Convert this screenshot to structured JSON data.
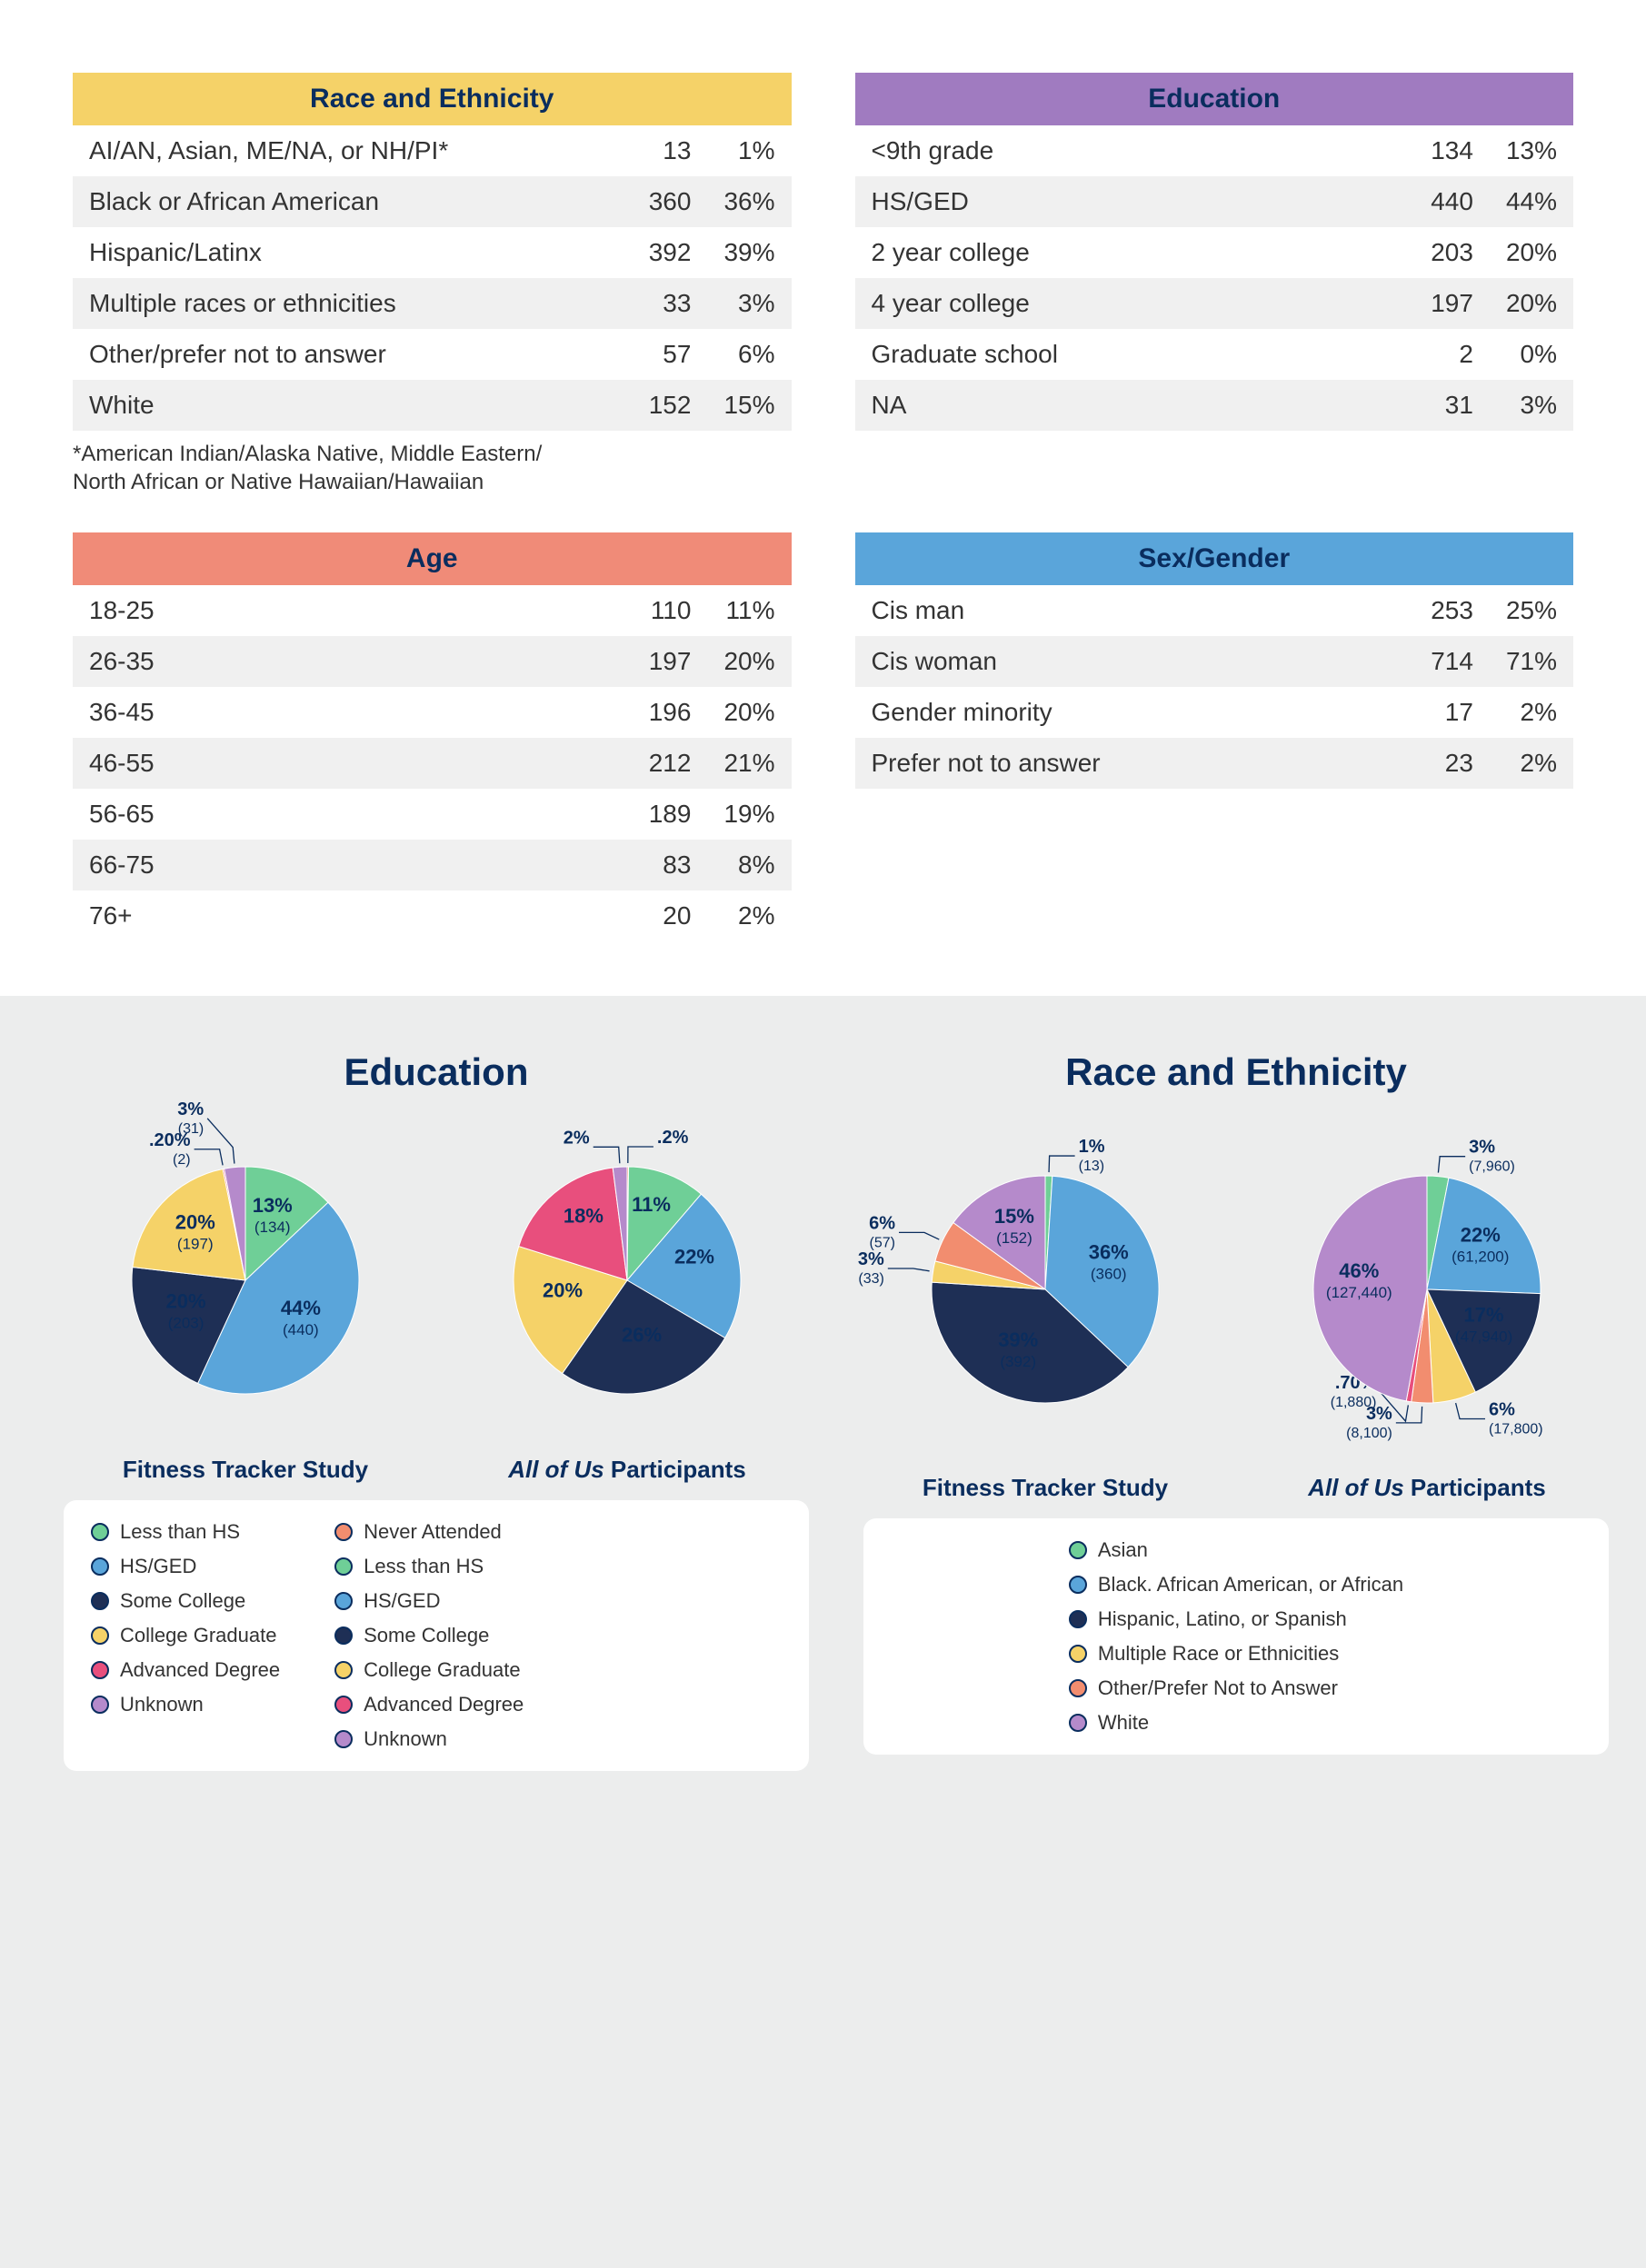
{
  "colors": {
    "header_text": "#0a2d5e",
    "row_even": "#f0f0f0",
    "row_odd": "#ffffff",
    "footnote": "#333333"
  },
  "palette": {
    "green": "#6fcf97",
    "lightblue": "#5aa5da",
    "navy": "#1e2f55",
    "yellow": "#f5d268",
    "pink": "#e84f7d",
    "lilac": "#b58acb",
    "coral": "#f28d6f"
  },
  "tables": {
    "race": {
      "title": "Race and Ethnicity",
      "header_bg": "#f5d268",
      "header_color": "#0a2d5e",
      "rows": [
        {
          "label": "AI/AN, Asian, ME/NA, or NH/PI*",
          "n": "13",
          "pct": "1%"
        },
        {
          "label": "Black or African American",
          "n": "360",
          "pct": "36%"
        },
        {
          "label": "Hispanic/Latinx",
          "n": "392",
          "pct": "39%"
        },
        {
          "label": "Multiple races or ethnicities",
          "n": "33",
          "pct": "3%"
        },
        {
          "label": "Other/prefer not to answer",
          "n": "57",
          "pct": "6%"
        },
        {
          "label": "White",
          "n": "152",
          "pct": "15%"
        }
      ],
      "footnote": "*American Indian/Alaska Native, Middle Eastern/\nNorth African or Native Hawaiian/Hawaiian"
    },
    "education": {
      "title": "Education",
      "header_bg": "#a07bc0",
      "header_color": "#0a2d5e",
      "rows": [
        {
          "label": "<9th grade",
          "n": "134",
          "pct": "13%"
        },
        {
          "label": "HS/GED",
          "n": "440",
          "pct": "44%"
        },
        {
          "label": "2 year college",
          "n": "203",
          "pct": "20%"
        },
        {
          "label": "4 year college",
          "n": "197",
          "pct": "20%"
        },
        {
          "label": "Graduate school",
          "n": "2",
          "pct": "0%"
        },
        {
          "label": "NA",
          "n": "31",
          "pct": "3%"
        }
      ]
    },
    "age": {
      "title": "Age",
      "header_bg": "#f08b78",
      "header_color": "#0a2d5e",
      "rows": [
        {
          "label": "18-25",
          "n": "110",
          "pct": "11%"
        },
        {
          "label": "26-35",
          "n": "197",
          "pct": "20%"
        },
        {
          "label": "36-45",
          "n": "196",
          "pct": "20%"
        },
        {
          "label": "46-55",
          "n": "212",
          "pct": "21%"
        },
        {
          "label": "56-65",
          "n": "189",
          "pct": "19%"
        },
        {
          "label": "66-75",
          "n": "83",
          "pct": "8%"
        },
        {
          "label": "76+",
          "n": "20",
          "pct": "2%"
        }
      ]
    },
    "sex": {
      "title": "Sex/Gender",
      "header_bg": "#5aa5da",
      "header_color": "#0a2d5e",
      "rows": [
        {
          "label": "Cis man",
          "n": "253",
          "pct": "25%"
        },
        {
          "label": "Cis woman",
          "n": "714",
          "pct": "71%"
        },
        {
          "label": "Gender minority",
          "n": "17",
          "pct": "2%"
        },
        {
          "label": "Prefer not to answer",
          "n": "23",
          "pct": "2%"
        }
      ]
    }
  },
  "charts": {
    "education": {
      "title": "Education",
      "subtitle_left": "Fitness Tracker Study",
      "subtitle_right_pre": "All of Us",
      "subtitle_right_post": " Participants",
      "pie_left": {
        "radius": 125,
        "slices": [
          {
            "key": "green",
            "value": 13,
            "label": "13%",
            "sub": "(134)",
            "inside": true
          },
          {
            "key": "lightblue",
            "value": 44,
            "label": "44%",
            "sub": "(440)",
            "inside": true
          },
          {
            "key": "navy",
            "value": 20,
            "label": "20%",
            "sub": "(203)",
            "inside": true,
            "light": true
          },
          {
            "key": "yellow",
            "value": 20,
            "label": "20%",
            "sub": "(197)",
            "inside": true
          },
          {
            "key": "pink",
            "value": 0.2,
            "label": ".20%",
            "sub": "(2)",
            "inside": false
          },
          {
            "key": "lilac",
            "value": 3,
            "label": "3%",
            "sub": "(31)",
            "inside": false
          }
        ]
      },
      "pie_right": {
        "radius": 125,
        "slices": [
          {
            "key": "coral",
            "value": 0.2,
            "label": ".2%",
            "sub": "",
            "inside": false
          },
          {
            "key": "green",
            "value": 11,
            "label": "11%",
            "sub": "",
            "inside": true
          },
          {
            "key": "lightblue",
            "value": 22,
            "label": "22%",
            "sub": "",
            "inside": true
          },
          {
            "key": "navy",
            "value": 26,
            "label": "26%",
            "sub": "",
            "inside": true,
            "light": true
          },
          {
            "key": "yellow",
            "value": 20,
            "label": "20%",
            "sub": "",
            "inside": true
          },
          {
            "key": "pink",
            "value": 18,
            "label": "18%",
            "sub": "",
            "inside": true,
            "light": true
          },
          {
            "key": "lilac",
            "value": 2,
            "label": "2%",
            "sub": "",
            "inside": false
          }
        ]
      },
      "legend_left": [
        {
          "key": "green",
          "label": "Less than HS"
        },
        {
          "key": "lightblue",
          "label": "HS/GED"
        },
        {
          "key": "navy",
          "label": "Some College"
        },
        {
          "key": "yellow",
          "label": "College Graduate"
        },
        {
          "key": "pink",
          "label": "Advanced Degree"
        },
        {
          "key": "lilac",
          "label": "Unknown"
        }
      ],
      "legend_right": [
        {
          "key": "coral",
          "label": "Never Attended"
        },
        {
          "key": "green",
          "label": "Less than HS"
        },
        {
          "key": "lightblue",
          "label": "HS/GED"
        },
        {
          "key": "navy",
          "label": "Some College"
        },
        {
          "key": "yellow",
          "label": "College Graduate"
        },
        {
          "key": "pink",
          "label": "Advanced Degree"
        },
        {
          "key": "lilac",
          "label": "Unknown"
        }
      ]
    },
    "race": {
      "title": "Race and Ethnicity",
      "subtitle_left": "Fitness Tracker Study",
      "subtitle_right_pre": "All of Us",
      "subtitle_right_post": " Participants",
      "pie_left": {
        "radius": 125,
        "slices": [
          {
            "key": "green",
            "value": 1,
            "label": "1%",
            "sub": "(13)",
            "inside": false
          },
          {
            "key": "lightblue",
            "value": 36,
            "label": "36%",
            "sub": "(360)",
            "inside": true
          },
          {
            "key": "navy",
            "value": 39,
            "label": "39%",
            "sub": "(392)",
            "inside": true,
            "light": true
          },
          {
            "key": "yellow",
            "value": 3,
            "label": "3%",
            "sub": "(33)",
            "inside": false
          },
          {
            "key": "coral",
            "value": 6,
            "label": "6%",
            "sub": "(57)",
            "inside": false
          },
          {
            "key": "lilac",
            "value": 15,
            "label": "15%",
            "sub": "(152)",
            "inside": true
          }
        ]
      },
      "pie_right": {
        "radius": 125,
        "slices": [
          {
            "key": "green",
            "value": 3,
            "label": "3%",
            "sub": "(7,960)",
            "inside": false
          },
          {
            "key": "lightblue",
            "value": 22,
            "label": "22%",
            "sub": "(61,200)",
            "inside": true
          },
          {
            "key": "navy",
            "value": 17,
            "label": "17%",
            "sub": "(47,940)",
            "inside": true,
            "light": true
          },
          {
            "key": "yellow",
            "value": 6,
            "label": "6%",
            "sub": "(17,800)",
            "inside": false
          },
          {
            "key": "coral",
            "value": 3,
            "label": "3%",
            "sub": "(8,100)",
            "inside": false
          },
          {
            "key": "pink",
            "value": 0.7,
            "label": ".70%",
            "sub": "(1,880)",
            "inside": false
          },
          {
            "key": "lilac",
            "value": 46,
            "label": "46%",
            "sub": "(127,440)",
            "inside": true,
            "light": true
          }
        ]
      },
      "legend": [
        {
          "key": "green",
          "label": "Asian"
        },
        {
          "key": "lightblue",
          "label": "Black. African American, or African"
        },
        {
          "key": "navy",
          "label": "Hispanic, Latino, or Spanish"
        },
        {
          "key": "yellow",
          "label": "Multiple Race or Ethnicities"
        },
        {
          "key": "coral",
          "label": "Other/Prefer Not to Answer"
        },
        {
          "key": "lilac",
          "label": "White"
        }
      ]
    }
  }
}
